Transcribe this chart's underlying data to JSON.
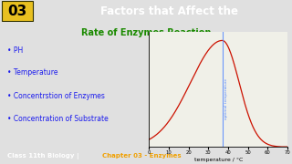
{
  "title_line1": "Factors that Affect the",
  "title_line2": "Rate of Enzymes Reaction",
  "bullet_points": [
    "PH",
    "Temperature",
    "Concentrstion of Enzymes",
    "Concentration of Substrate"
  ],
  "header_bg": "#8b1a1a",
  "header_number": "03",
  "header_number_bg": "#e8c020",
  "header_number_outline": "#222200",
  "title_line1_color": "#ffffff",
  "title_line2_color": "#1a8a00",
  "bullet_color": "#1a1aee",
  "footer_bg": "#111111",
  "footer_text_color": "#ffffff",
  "footer_highlight": "Chapter 03 - Enzymes",
  "footer_highlight_color": "#f0a000",
  "curve_color": "#cc1100",
  "vline_color": "#5588ff",
  "vline_x": 37,
  "vline_label": "optimal temperature",
  "graph_bg": "#f0f0e8",
  "xlim": [
    0,
    70
  ],
  "xticks": [
    0,
    10,
    20,
    30,
    40,
    50,
    60,
    70
  ],
  "xlabel": "temperature / °C",
  "bg_color": "#d8d8d8",
  "main_bg": "#e0e0e0"
}
